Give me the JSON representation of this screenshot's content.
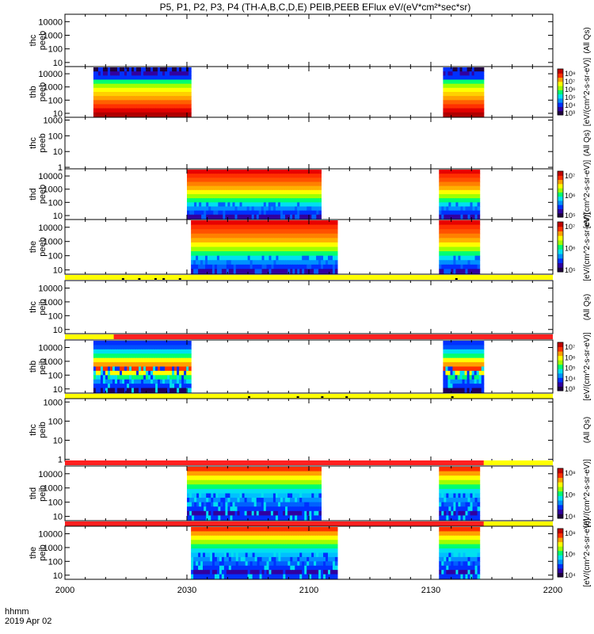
{
  "title": "P5, P1, P2, P3, P4 (TH-A,B,C,D,E) PEIB,PEEB EFlux eV/(eV*cm²*sec*sr)",
  "time_label": "hhmm",
  "date_label": "2019 Apr 02",
  "chart_data": {
    "type": "heatmap",
    "x_ticks": [
      "2000",
      "2030",
      "2100",
      "2130",
      "2200"
    ],
    "x_range_min": [
      0,
      120
    ],
    "colorscale": [
      "#200040",
      "#3000a0",
      "#0030ff",
      "#0090ff",
      "#00e0f0",
      "#00ff70",
      "#a0ff00",
      "#ffff00",
      "#ffa000",
      "#ff3000",
      "#c00000"
    ],
    "panels": [
      {
        "id": "thc-peeb",
        "ylabel_probe": "thc",
        "ylabel_species": "peeb",
        "yticks": [
          "10000",
          "1000",
          "100",
          "10"
        ],
        "ylog": [
          5,
          35000.0
        ],
        "cbar_label": "(All Qs)",
        "cbar_ticks": [],
        "status_bar": null,
        "blocks": [],
        "dots": []
      },
      {
        "id": "thb-peeb",
        "ylabel_probe": "thb",
        "ylabel_species": "peeb",
        "yticks": [
          "10000",
          "1000",
          "100",
          "10"
        ],
        "ylog": [
          5,
          35000.0
        ],
        "cbar_label": "[eV/(cm^2-s-sr-eV)]",
        "cbar_ticks": [
          "10⁸",
          "10⁷",
          "10⁶",
          "10⁵",
          "10⁴",
          "10³"
        ],
        "status_bar": null,
        "blocks": [
          {
            "t0": 7,
            "t1": 31,
            "kind": "thb-e"
          },
          {
            "t0": 93,
            "t1": 103,
            "kind": "thb-e"
          }
        ],
        "dots": []
      },
      {
        "id": "thc-peeb-2",
        "ylabel_probe": "thc",
        "ylabel_species": "peeb",
        "yticks": [
          "1000",
          "100",
          "10",
          "1"
        ],
        "ylog": [
          0.8,
          1500
        ],
        "cbar_label": "(All Qs)",
        "cbar_ticks": [],
        "status_bar": null,
        "blocks": [],
        "dots": []
      },
      {
        "id": "thd-peeb",
        "ylabel_probe": "thd",
        "ylabel_species": "peeb",
        "yticks": [
          "10000",
          "1000",
          "100",
          "10"
        ],
        "ylog": [
          5,
          35000.0
        ],
        "cbar_label": "[eV/(cm^2-s-sr-eV)]",
        "cbar_ticks": [
          "10⁷",
          "10⁶",
          "10⁵"
        ],
        "status_bar": null,
        "blocks": [
          {
            "t0": 30,
            "t1": 63,
            "kind": "hot-e"
          },
          {
            "t0": 92,
            "t1": 102,
            "kind": "hot-e"
          }
        ],
        "dots": []
      },
      {
        "id": "the-peeb",
        "ylabel_probe": "the",
        "ylabel_species": "peeb",
        "yticks": [
          "10000",
          "1000",
          "100",
          "10"
        ],
        "ylog": [
          5,
          35000.0
        ],
        "cbar_label": "[eV/(cm^2-s-sr-eV)]",
        "cbar_ticks": [
          "10⁷",
          "10⁶",
          "10⁵"
        ],
        "status_bar": {
          "segments": [
            {
              "t0": 0,
              "t1": 120,
              "color": "#ffff00"
            }
          ]
        },
        "blocks": [
          {
            "t0": 31,
            "t1": 67,
            "kind": "hot-e"
          },
          {
            "t0": 92,
            "t1": 102,
            "kind": "hot-e"
          }
        ],
        "dots": []
      },
      {
        "id": "thc-peib",
        "ylabel_probe": "thc",
        "ylabel_species": "peib",
        "yticks": [
          "10000",
          "1000",
          "100",
          "10"
        ],
        "ylog": [
          5,
          35000.0
        ],
        "cbar_label": "(All Qs)",
        "cbar_ticks": [],
        "status_bar": {
          "segments": [
            {
              "t0": 0,
              "t1": 120,
              "color": "#ffff00"
            },
            {
              "t0": 12,
              "t1": 120,
              "color": "#ff2020"
            }
          ]
        },
        "blocks": [],
        "dots": [
          14,
          18,
          22,
          24,
          28,
          96
        ]
      },
      {
        "id": "thb-peib",
        "ylabel_probe": "thb",
        "ylabel_species": "peib",
        "yticks": [
          "10000",
          "1000",
          "100",
          "10"
        ],
        "ylog": [
          5,
          35000.0
        ],
        "cbar_label": "[eV/(cm^2-s-sr-eV)]",
        "cbar_ticks": [
          "10⁷",
          "10⁶",
          "10⁵",
          "10⁴",
          "10³"
        ],
        "status_bar": {
          "segments": [
            {
              "t0": 0,
              "t1": 120,
              "color": "#ffff00"
            }
          ]
        },
        "blocks": [
          {
            "t0": 7,
            "t1": 31,
            "kind": "ion"
          },
          {
            "t0": 93,
            "t1": 103,
            "kind": "ion"
          }
        ],
        "dots": []
      },
      {
        "id": "thc-peib-2",
        "ylabel_probe": "thc",
        "ylabel_species": "peib",
        "yticks": [
          "1000",
          "100",
          "10",
          "1"
        ],
        "ylog": [
          0.8,
          1500
        ],
        "cbar_label": "(All Qs)",
        "cbar_ticks": [],
        "status_bar": {
          "segments": [
            {
              "t0": 0,
              "t1": 120,
              "color": "#ffff00"
            },
            {
              "t0": 0,
              "t1": 103,
              "color": "#ff2020"
            }
          ]
        },
        "blocks": [],
        "dots": [
          45,
          57,
          63,
          69,
          95
        ]
      },
      {
        "id": "thd-peib",
        "ylabel_probe": "thd",
        "ylabel_species": "peib",
        "yticks": [
          "10000",
          "1000",
          "100",
          "10"
        ],
        "ylog": [
          5,
          35000.0
        ],
        "cbar_label": "[eV/(cm^2-s-sr-eV)]",
        "cbar_ticks": [
          "10⁸",
          "10⁶",
          "10⁴"
        ],
        "status_bar": {
          "segments": [
            {
              "t0": 0,
              "t1": 120,
              "color": "#ffff00"
            },
            {
              "t0": 0,
              "t1": 103,
              "color": "#ff2020"
            }
          ]
        },
        "blocks": [
          {
            "t0": 30,
            "t1": 63,
            "kind": "ion-b"
          },
          {
            "t0": 92,
            "t1": 102,
            "kind": "ion-b"
          }
        ],
        "dots": []
      },
      {
        "id": "the-peib",
        "ylabel_probe": "the",
        "ylabel_species": "peib",
        "yticks": [
          "10000",
          "1000",
          "100",
          "10"
        ],
        "ylog": [
          5,
          35000.0
        ],
        "cbar_label": "[eV/(cm^2-s-sr-eV)]",
        "cbar_ticks": [
          "10⁸",
          "10⁶",
          "10⁴"
        ],
        "status_bar": null,
        "blocks": [
          {
            "t0": 31,
            "t1": 67,
            "kind": "ion-b"
          },
          {
            "t0": 92,
            "t1": 102,
            "kind": "ion-b"
          }
        ],
        "dots": []
      }
    ]
  }
}
